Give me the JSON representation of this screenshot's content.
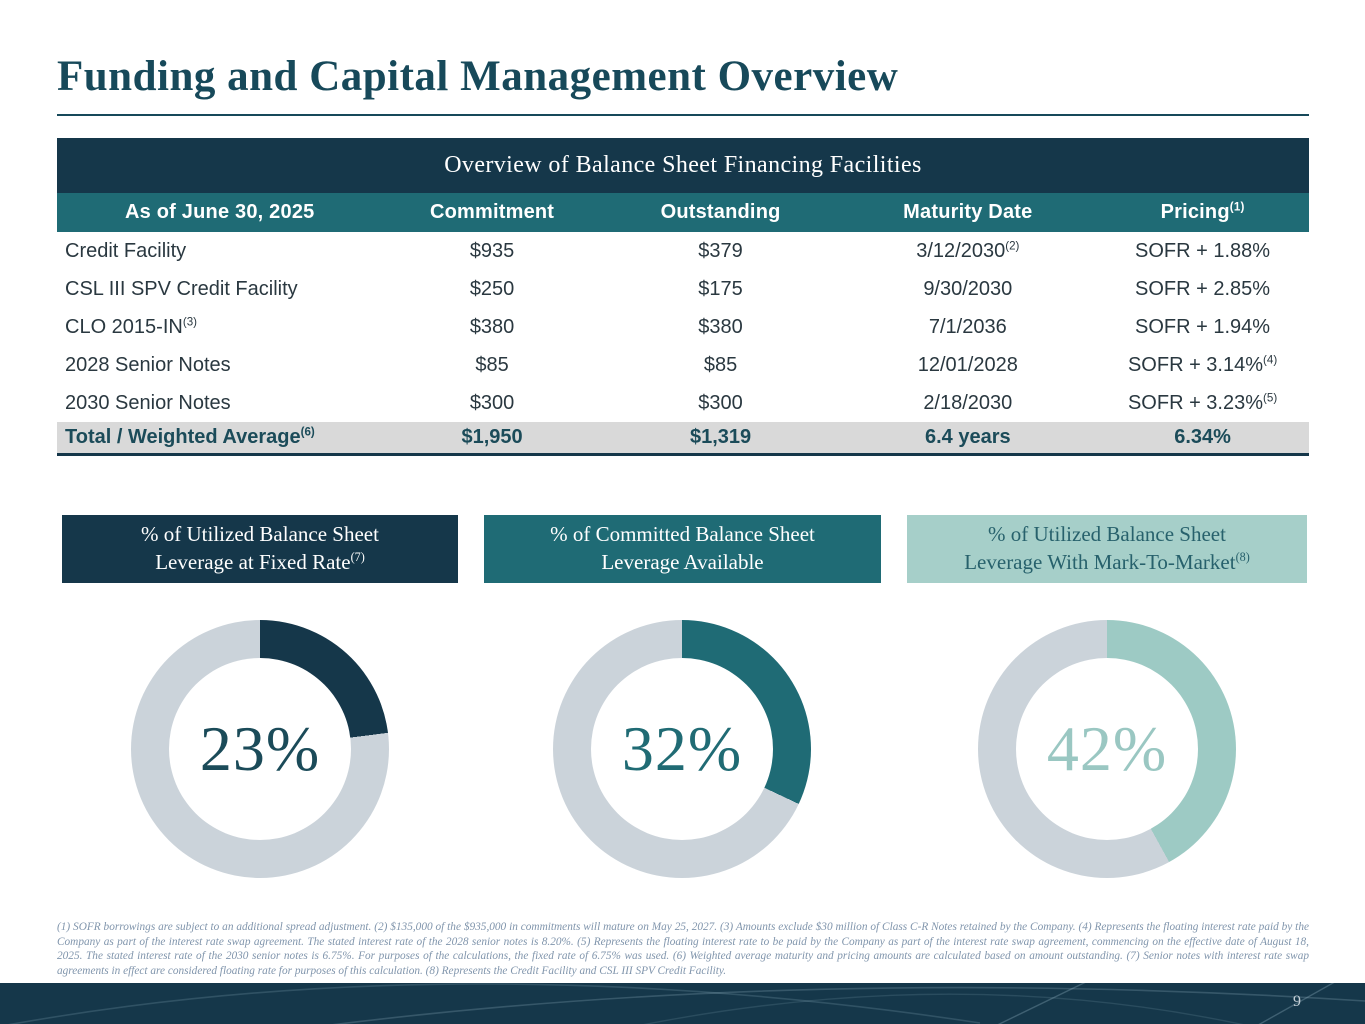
{
  "title": "Funding and Capital Management Overview",
  "table": {
    "title": "Overview of Balance Sheet Financing Facilities",
    "columns": [
      {
        "t": "As of June 30, 2025",
        "sup": ""
      },
      {
        "t": "Commitment",
        "sup": ""
      },
      {
        "t": "Outstanding",
        "sup": ""
      },
      {
        "t": "Maturity Date",
        "sup": ""
      },
      {
        "t": "Pricing",
        "sup": "(1)"
      }
    ],
    "rows": [
      {
        "cells": [
          {
            "t": "Credit Facility"
          },
          {
            "t": "$935"
          },
          {
            "t": "$379"
          },
          {
            "t": "3/12/2030",
            "sup": "(2)"
          },
          {
            "t": "SOFR + 1.88%"
          }
        ]
      },
      {
        "cells": [
          {
            "t": "CSL III SPV Credit Facility"
          },
          {
            "t": "$250"
          },
          {
            "t": "$175"
          },
          {
            "t": "9/30/2030"
          },
          {
            "t": "SOFR + 2.85%"
          }
        ]
      },
      {
        "cells": [
          {
            "t": "CLO 2015-IN",
            "sup": "(3)"
          },
          {
            "t": "$380"
          },
          {
            "t": "$380"
          },
          {
            "t": "7/1/2036"
          },
          {
            "t": "SOFR + 1.94%"
          }
        ]
      },
      {
        "cells": [
          {
            "t": "2028 Senior Notes"
          },
          {
            "t": "$85"
          },
          {
            "t": "$85"
          },
          {
            "t": "12/01/2028"
          },
          {
            "t": "SOFR + 3.14%",
            "sup": "(4)"
          }
        ]
      },
      {
        "cells": [
          {
            "t": "2030 Senior Notes"
          },
          {
            "t": "$300"
          },
          {
            "t": "$300"
          },
          {
            "t": "2/18/2030"
          },
          {
            "t": "SOFR + 3.23%",
            "sup": "(5)"
          }
        ]
      }
    ],
    "total": {
      "cells": [
        {
          "t": "Total / Weighted Average",
          "sup": "(6)"
        },
        {
          "t": "$1,950"
        },
        {
          "t": "$1,319"
        },
        {
          "t": "6.4 years"
        },
        {
          "t": "6.34%"
        }
      ]
    }
  },
  "chart_data": [
    {
      "type": "pie",
      "variant": "donut",
      "header_line1": "% of Utilized Balance Sheet",
      "header_line2": "Leverage at Fixed Rate",
      "header_sup": "(7)",
      "label": "23%",
      "value": 23,
      "remainder": 77,
      "fill": "#15374a",
      "track": "#cbd3da",
      "label_color": "#1b4b59",
      "header_bg": "#15374a",
      "header_text": "#ffffff"
    },
    {
      "type": "pie",
      "variant": "donut",
      "header_line1": "% of Committed Balance Sheet",
      "header_line2": "Leverage Available",
      "header_sup": "",
      "label": "32%",
      "value": 32,
      "remainder": 68,
      "fill": "#1f6b75",
      "track": "#cbd3da",
      "label_color": "#206b74",
      "header_bg": "#1f6b75",
      "header_text": "#ffffff"
    },
    {
      "type": "pie",
      "variant": "donut",
      "header_line1": "% of Utilized Balance Sheet",
      "header_line2": "Leverage With Mark-To-Market",
      "header_sup": "(8)",
      "label": "42%",
      "value": 42,
      "remainder": 58,
      "fill": "#9dcac4",
      "track": "#cbd3da",
      "label_color": "#9ac7c2",
      "header_bg": "#a6cfc9",
      "header_text": "#27616c"
    }
  ],
  "footnotes": "(1) SOFR borrowings are subject to an additional spread adjustment. (2) $135,000 of the $935,000 in commitments will mature on May 25, 2027. (3) Amounts exclude $30 million of Class C-R Notes retained by the Company. (4) Represents the floating interest rate paid by the Company as part of the interest rate swap agreement. The stated interest rate of the 2028 senior notes is 8.20%. (5) Represents the floating interest rate to be paid by the Company as part of the interest rate swap agreement, commencing on the effective date of August 18, 2025. The stated interest rate of the 2030 senior notes is 6.75%.  For purposes of the calculations, the fixed rate of 6.75% was used. (6) Weighted average maturity and pricing amounts are calculated based on amount outstanding. (7) Senior notes with interest rate swap agreements in effect are considered floating rate for purposes of this calculation. (8) Represents the Credit Facility and CSL III SPV Credit Facility.",
  "page": {
    "number": "9"
  },
  "colors": {
    "title_text": "#17495a",
    "table_title_bg": "#15374a",
    "table_header_bg": "#1f6b75",
    "total_row_bg": "#d9d9d9",
    "total_row_text": "#1b4b59",
    "footnote_text": "#8095ac",
    "bottom_bar_bg": "#15374a"
  }
}
